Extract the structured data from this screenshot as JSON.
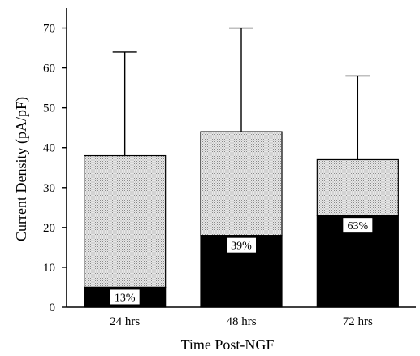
{
  "chart_data": {
    "type": "bar",
    "stacked": true,
    "categories": [
      "24 hrs",
      "48 hrs",
      "72 hrs"
    ],
    "series": [
      {
        "values": [
          5,
          18,
          23
        ],
        "color": "#000000"
      },
      {
        "values": [
          33,
          26,
          14
        ],
        "color": "#c8c8c8"
      }
    ],
    "totals": [
      38,
      44,
      37
    ],
    "error_upper": [
      64,
      70,
      58
    ],
    "data_labels": [
      "13%",
      "39%",
      "63%"
    ],
    "xlabel": "Time Post-NGF",
    "ylabel": "Current Density (pA/pF)",
    "ylim": [
      0,
      75
    ],
    "yticks": [
      0,
      10,
      20,
      30,
      40,
      50,
      60,
      70
    ],
    "grid": false
  }
}
